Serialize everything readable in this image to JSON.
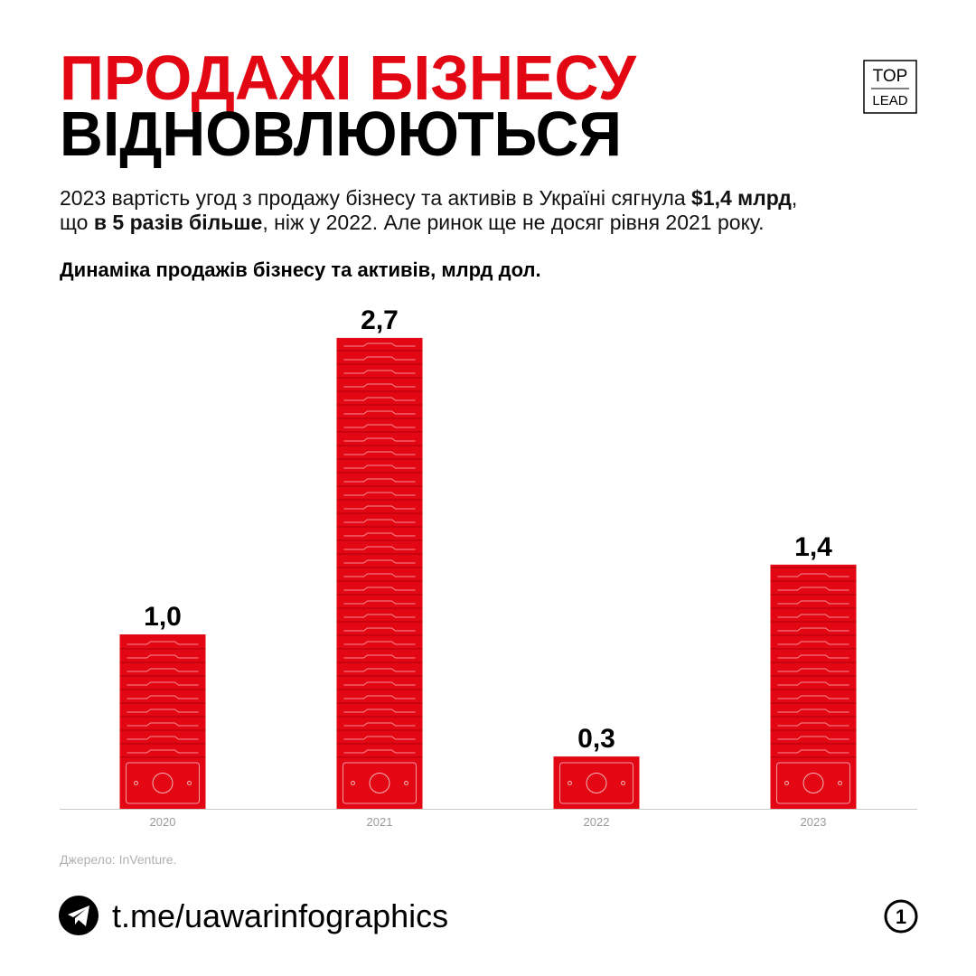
{
  "header": {
    "title_line1": "ПРОДАЖІ БІЗНЕСУ",
    "title_line2": "ВІДНОВЛЮЮТЬСЯ",
    "description_line1": [
      "2023 вартість угод з продажу бізнесу та активів в Україні сягнула ",
      "$1,4 млрд",
      ","
    ],
    "description_line2": [
      "що ",
      "в 5 разів більше",
      ", ніж у 2022. Але ринок ще не досяг рівня 2021 року."
    ],
    "logo_top": "TOP",
    "logo_bottom": "LEAD"
  },
  "chart_data": {
    "type": "bar",
    "title": "Динаміка продажів бізнесу та активів, млрд дол.",
    "categories": [
      "2020",
      "2021",
      "2022",
      "2023"
    ],
    "values": [
      1.0,
      2.7,
      0.3,
      1.4
    ],
    "value_labels": [
      "1,0",
      "2,7",
      "0,3",
      "1,4"
    ],
    "color": "#e30613"
  },
  "footer": {
    "source": "Джерело: InVenture.",
    "link": "t.me/uawarinfographics",
    "page": "1"
  }
}
